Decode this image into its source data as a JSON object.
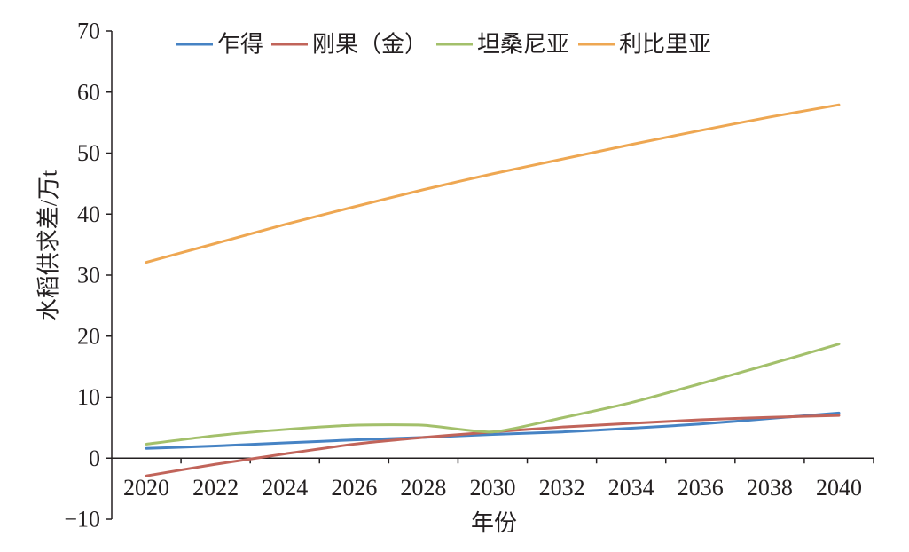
{
  "chart_data": {
    "type": "line",
    "title": "",
    "xlabel": "年份",
    "ylabel": "水稻供求差/万t",
    "categories": [
      "2020",
      "2022",
      "2024",
      "2026",
      "2028",
      "2030",
      "2032",
      "2034",
      "2036",
      "2038",
      "2040"
    ],
    "ylim": [
      -10,
      70
    ],
    "yticks": [
      -10,
      0,
      10,
      20,
      30,
      40,
      50,
      60,
      70
    ],
    "ytick_labels": [
      "−10",
      "0",
      "10",
      "20",
      "30",
      "40",
      "50",
      "60",
      "70"
    ],
    "grid": false,
    "legend": "top",
    "series": [
      {
        "name": "乍得",
        "color": "#4683c4",
        "values": [
          1.6,
          2.0,
          2.5,
          3.0,
          3.4,
          3.9,
          4.3,
          4.9,
          5.6,
          6.5,
          7.4
        ]
      },
      {
        "name": "刚果（金）",
        "color": "#c1645a",
        "values": [
          -2.9,
          -1.0,
          0.7,
          2.3,
          3.4,
          4.3,
          5.1,
          5.7,
          6.3,
          6.7,
          7.0
        ]
      },
      {
        "name": "坦桑尼亚",
        "color": "#a3c06b",
        "values": [
          2.3,
          3.7,
          4.7,
          5.4,
          5.4,
          4.3,
          6.6,
          9.1,
          12.2,
          15.4,
          18.7
        ]
      },
      {
        "name": "利比里亚",
        "color": "#eea752",
        "values": [
          32.1,
          35.2,
          38.3,
          41.2,
          44.0,
          46.6,
          49.0,
          51.4,
          53.7,
          55.9,
          57.9
        ]
      }
    ]
  }
}
